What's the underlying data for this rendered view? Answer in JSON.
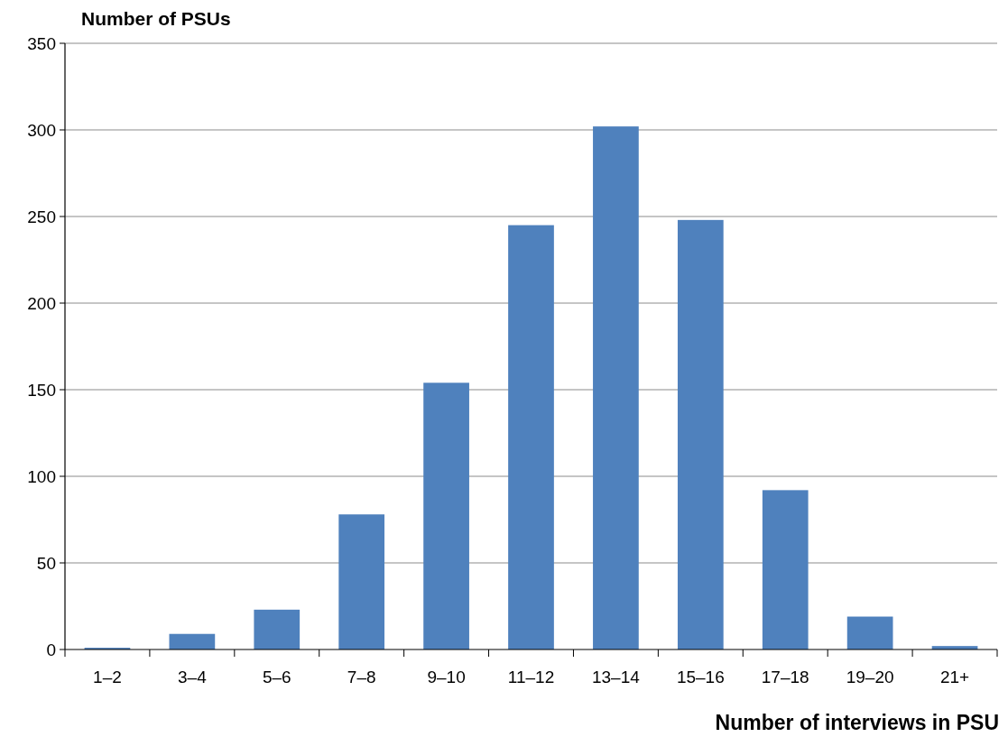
{
  "chart_data": {
    "type": "bar",
    "xlabel": "Number of interviews in PSU",
    "ylabel": "Number of PSUs",
    "categories": [
      "1–2",
      "3–4",
      "5–6",
      "7–8",
      "9–10",
      "11–12",
      "13–14",
      "15–16",
      "17–18",
      "19–20",
      "21+"
    ],
    "values": [
      1,
      9,
      23,
      78,
      154,
      245,
      302,
      248,
      92,
      19,
      2
    ],
    "color": "#4f81bd",
    "ylim": [
      0,
      350
    ],
    "yticks": [
      0,
      50,
      100,
      150,
      200,
      250,
      300,
      350
    ],
    "grid": "y"
  }
}
